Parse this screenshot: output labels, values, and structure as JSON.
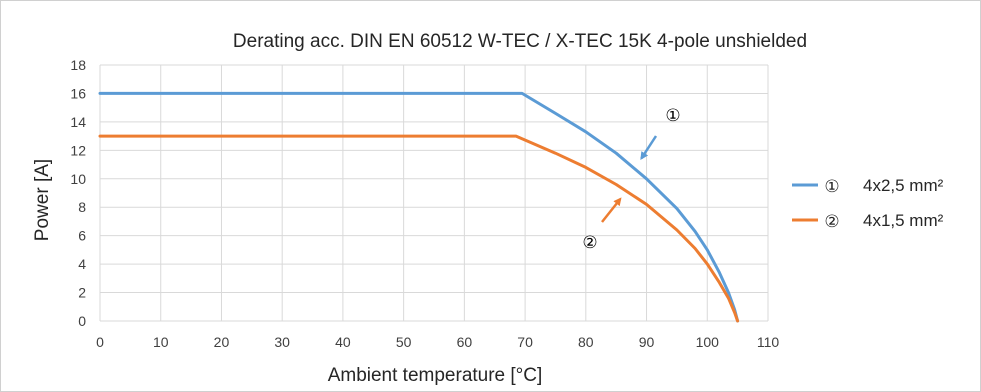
{
  "chart_data": {
    "type": "line",
    "title": "Derating acc. DIN EN 60512 W-TEC / X-TEC 15K 4-pole unshielded",
    "xlabel": "Ambient temperature   [°C]",
    "ylabel": "Power   [A]",
    "xlim": [
      0,
      110
    ],
    "ylim": [
      0,
      18
    ],
    "x_ticks": [
      0,
      10,
      20,
      30,
      40,
      50,
      60,
      70,
      80,
      90,
      100,
      110
    ],
    "y_ticks": [
      0,
      2,
      4,
      6,
      8,
      10,
      12,
      14,
      16,
      18
    ],
    "grid": true,
    "legend_position": "right",
    "series": [
      {
        "name": "4x2,5 mm²",
        "marker": "①",
        "color": "#5B9BD5",
        "x": [
          0,
          69.5,
          75,
          80,
          85,
          90,
          95,
          98,
          100,
          102,
          103.5,
          104.5,
          105
        ],
        "y": [
          16,
          16,
          14.6,
          13.3,
          11.8,
          10.0,
          7.9,
          6.3,
          5.0,
          3.4,
          2.0,
          0.8,
          0
        ]
      },
      {
        "name": "4x1,5 mm²",
        "marker": "②",
        "color": "#ED7D31",
        "x": [
          0,
          68.5,
          75,
          80,
          85,
          90,
          95,
          98,
          100,
          102,
          103.5,
          104.5,
          105
        ],
        "y": [
          13,
          13,
          11.8,
          10.8,
          9.6,
          8.2,
          6.4,
          5.1,
          4.0,
          2.7,
          1.6,
          0.6,
          0
        ]
      }
    ],
    "annotations": [
      {
        "label": "①",
        "points_to": [
          88.5,
          11.3
        ]
      },
      {
        "label": "②",
        "points_to": [
          86,
          9.0
        ]
      }
    ]
  }
}
